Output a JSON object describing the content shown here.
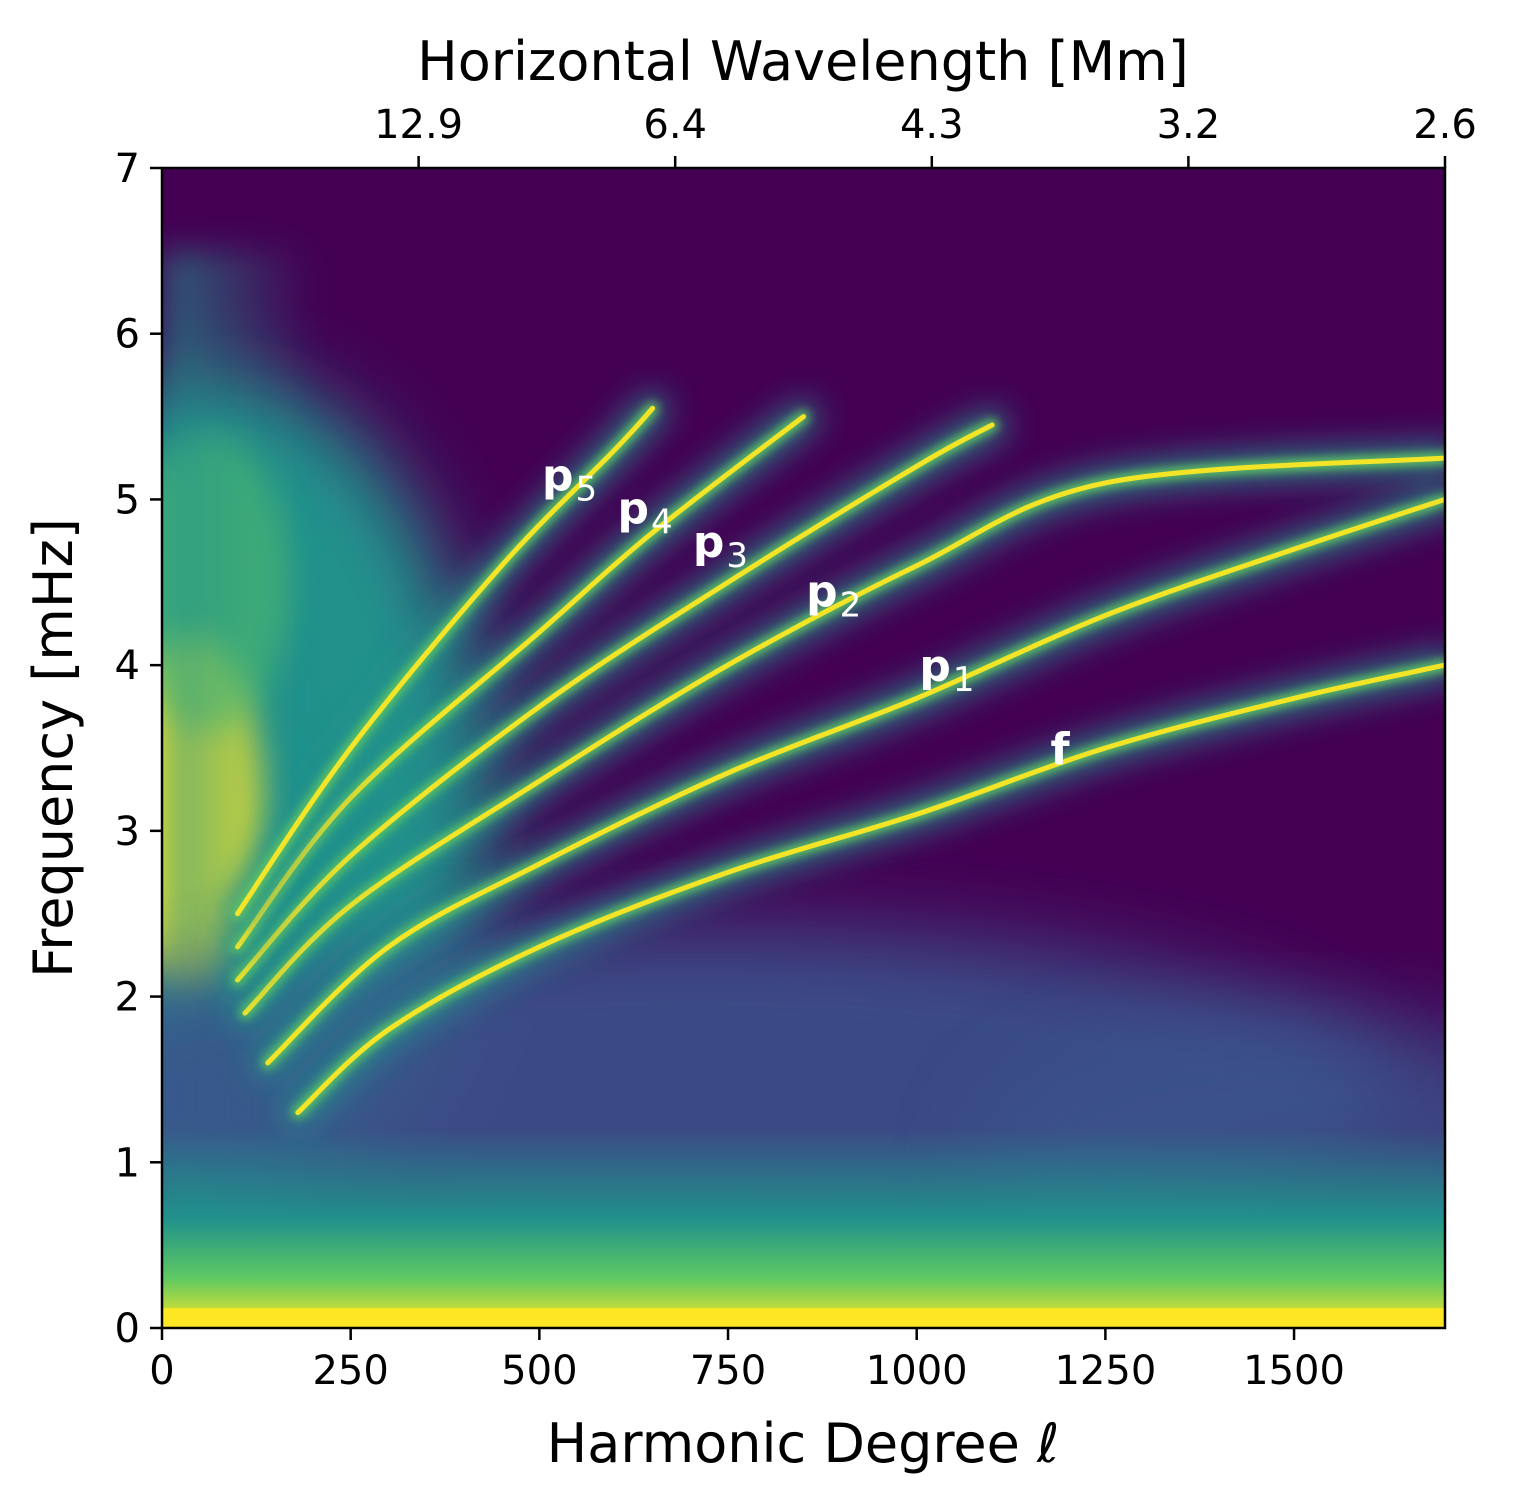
{
  "chart_data": {
    "type": "heatmap",
    "title": "",
    "xlabel": "Harmonic Degree ℓ",
    "ylabel": "Frequency [mHz]",
    "top_xlabel": "Horizontal Wavelength [Mm]",
    "xlim": [
      0,
      1700
    ],
    "ylim": [
      0,
      7
    ],
    "x_ticks": [
      0,
      250,
      500,
      750,
      1000,
      1250,
      1500
    ],
    "y_ticks": [
      0,
      1,
      2,
      3,
      4,
      5,
      6,
      7
    ],
    "top_ticks": [
      {
        "ell": 340,
        "label": "12.9"
      },
      {
        "ell": 680,
        "label": "6.4"
      },
      {
        "ell": 1020,
        "label": "4.3"
      },
      {
        "ell": 1360,
        "label": "3.2"
      },
      {
        "ell": 1700,
        "label": "2.6"
      }
    ],
    "colormap": "viridis",
    "colors": {
      "low": "#440154",
      "mid": "#21918c",
      "high": "#fde725"
    },
    "ridges": [
      {
        "name": "f",
        "label_main": "f",
        "label_sub": "",
        "label_pos": [
          1190,
          3.5
        ],
        "points": [
          [
            180,
            1.3
          ],
          [
            300,
            1.8
          ],
          [
            500,
            2.3
          ],
          [
            750,
            2.75
          ],
          [
            1000,
            3.1
          ],
          [
            1250,
            3.5
          ],
          [
            1500,
            3.8
          ],
          [
            1700,
            4.0
          ]
        ]
      },
      {
        "name": "p1",
        "label_main": "p",
        "label_sub": "1",
        "label_pos": [
          1040,
          4.0
        ],
        "points": [
          [
            140,
            1.6
          ],
          [
            300,
            2.3
          ],
          [
            500,
            2.8
          ],
          [
            750,
            3.35
          ],
          [
            1000,
            3.8
          ],
          [
            1250,
            4.3
          ],
          [
            1500,
            4.7
          ],
          [
            1700,
            5.0
          ]
        ]
      },
      {
        "name": "p2",
        "label_main": "p",
        "label_sub": "2",
        "label_pos": [
          890,
          4.45
        ],
        "points": [
          [
            110,
            1.9
          ],
          [
            250,
            2.55
          ],
          [
            500,
            3.3
          ],
          [
            750,
            4.0
          ],
          [
            1000,
            4.6
          ],
          [
            1250,
            5.1
          ],
          [
            1700,
            5.25
          ]
        ]
      },
      {
        "name": "p3",
        "label_main": "p",
        "label_sub": "3",
        "label_pos": [
          740,
          4.75
        ],
        "points": [
          [
            100,
            2.1
          ],
          [
            250,
            2.85
          ],
          [
            500,
            3.75
          ],
          [
            750,
            4.5
          ],
          [
            1000,
            5.2
          ],
          [
            1100,
            5.45
          ]
        ]
      },
      {
        "name": "p4",
        "label_main": "p",
        "label_sub": "4",
        "label_pos": [
          640,
          4.95
        ],
        "points": [
          [
            100,
            2.3
          ],
          [
            250,
            3.2
          ],
          [
            500,
            4.2
          ],
          [
            650,
            4.8
          ],
          [
            850,
            5.5
          ]
        ]
      },
      {
        "name": "p5",
        "label_main": "p",
        "label_sub": "5",
        "label_pos": [
          540,
          5.15
        ],
        "points": [
          [
            100,
            2.5
          ],
          [
            250,
            3.5
          ],
          [
            450,
            4.6
          ],
          [
            600,
            5.3
          ],
          [
            650,
            5.55
          ]
        ]
      }
    ]
  }
}
